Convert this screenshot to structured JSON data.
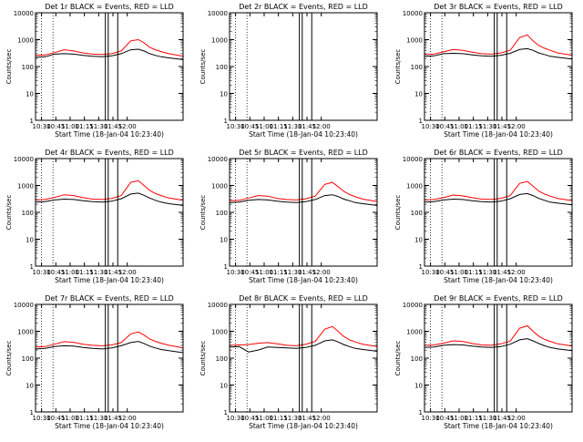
{
  "figure": {
    "start_time_label": "Start Time (18-Jan-04 10:23:40)",
    "ylabel": "Counts/sec",
    "x_ticks": [
      "10:30",
      "10:45",
      "11:00",
      "11:15",
      "11:30",
      "11:45",
      "12:00"
    ],
    "y_ticks": [
      "1",
      "10",
      "100",
      "1000",
      "10000"
    ],
    "colors": {
      "events": "#000000",
      "lld": "#ff0000",
      "axes": "#000000",
      "background": "#ffffff"
    }
  },
  "chart_data": [
    {
      "type": "line",
      "title": "Det 1r BLACK = Events, RED = LLD",
      "x_minutes_since_10_23_40": [
        0,
        10,
        20,
        30,
        40,
        50,
        60,
        70,
        80,
        90,
        100,
        108,
        114,
        120,
        126,
        132,
        140,
        150,
        155
      ],
      "x": [
        "10:23:40",
        "10:33:40",
        "10:43:40",
        "10:53:40",
        "11:03:40",
        "11:13:40",
        "11:23:40",
        "11:33:40",
        "11:43:40",
        "11:53:40",
        "12:03:40",
        "12:11:40",
        "12:17:40",
        "12:23:40",
        "12:29:40",
        "12:35:40",
        "12:43:40",
        "12:53:40",
        "12:58:40"
      ],
      "series": [
        {
          "name": "LLD",
          "color": "#ff0000",
          "values": [
            260,
            270,
            330,
            420,
            380,
            320,
            290,
            280,
            300,
            380,
            900,
            1000,
            760,
            520,
            420,
            360,
            300,
            260,
            240
          ]
        },
        {
          "name": "Events",
          "color": "#000000",
          "values": [
            220,
            230,
            290,
            300,
            290,
            260,
            240,
            230,
            250,
            300,
            420,
            440,
            380,
            300,
            260,
            230,
            210,
            190,
            180
          ]
        }
      ],
      "xlim": [
        "10:23:40",
        "12:58:40"
      ],
      "ylim": [
        1,
        10000
      ],
      "yscale": "log",
      "vlines_dotted": [
        "10:30",
        "10:42"
      ],
      "vlines_solid": [
        "11:37",
        "11:40",
        "11:50"
      ]
    },
    {
      "type": "line",
      "title": "Det 2r BLACK = Events, RED = LLD",
      "series": [],
      "xlim": [
        "10:23:40",
        "12:58:40"
      ],
      "ylim": [
        1,
        10000
      ],
      "yscale": "log",
      "vlines_dotted": [
        "10:30",
        "10:42"
      ],
      "vlines_solid": [
        "11:37",
        "11:40",
        "11:50"
      ]
    },
    {
      "type": "line",
      "title": "Det 3r BLACK = Events, RED = LLD",
      "series": [
        {
          "name": "LLD",
          "color": "#ff0000",
          "values": [
            280,
            290,
            350,
            430,
            400,
            340,
            300,
            290,
            320,
            400,
            1200,
            1500,
            900,
            600,
            480,
            400,
            320,
            280,
            260
          ]
        },
        {
          "name": "Events",
          "color": "#000000",
          "values": [
            240,
            250,
            300,
            310,
            300,
            270,
            250,
            240,
            260,
            310,
            430,
            460,
            400,
            320,
            280,
            240,
            220,
            200,
            190
          ]
        }
      ],
      "xlim": [
        "10:23:40",
        "12:58:40"
      ],
      "ylim": [
        1,
        10000
      ],
      "yscale": "log",
      "vlines_dotted": [
        "10:30",
        "10:42"
      ],
      "vlines_solid": [
        "11:37",
        "11:40",
        "11:50"
      ]
    },
    {
      "type": "line",
      "title": "Det 4r BLACK = Events, RED = LLD",
      "series": [
        {
          "name": "LLD",
          "color": "#ff0000",
          "values": [
            290,
            300,
            360,
            450,
            420,
            350,
            310,
            300,
            330,
            420,
            1300,
            1500,
            1000,
            650,
            500,
            420,
            340,
            300,
            280
          ]
        },
        {
          "name": "Events",
          "color": "#000000",
          "values": [
            240,
            250,
            290,
            310,
            300,
            270,
            250,
            240,
            260,
            320,
            480,
            520,
            430,
            340,
            280,
            240,
            210,
            190,
            180
          ]
        }
      ],
      "xlim": [
        "10:23:40",
        "12:58:40"
      ],
      "ylim": [
        1,
        10000
      ],
      "yscale": "log",
      "vlines_dotted": [
        "10:30",
        "10:42"
      ],
      "vlines_solid": [
        "11:37",
        "11:40",
        "11:50"
      ]
    },
    {
      "type": "line",
      "title": "Det 5r BLACK = Events, RED = LLD",
      "series": [
        {
          "name": "LLD",
          "color": "#ff0000",
          "values": [
            270,
            280,
            340,
            420,
            400,
            330,
            300,
            290,
            320,
            400,
            1100,
            1300,
            900,
            600,
            460,
            380,
            310,
            270,
            250
          ]
        },
        {
          "name": "Events",
          "color": "#000000",
          "values": [
            230,
            240,
            280,
            300,
            290,
            260,
            240,
            230,
            250,
            300,
            420,
            450,
            390,
            310,
            270,
            230,
            210,
            190,
            180
          ]
        }
      ],
      "xlim": [
        "10:23:40",
        "12:58:40"
      ],
      "ylim": [
        1,
        10000
      ],
      "yscale": "log",
      "vlines_dotted": [
        "10:30",
        "10:42"
      ],
      "vlines_solid": [
        "11:37",
        "11:40",
        "11:50"
      ]
    },
    {
      "type": "line",
      "title": "Det 6r BLACK = Events, RED = LLD",
      "series": [
        {
          "name": "LLD",
          "color": "#ff0000",
          "values": [
            290,
            300,
            350,
            440,
            410,
            350,
            310,
            300,
            330,
            420,
            1200,
            1400,
            950,
            620,
            480,
            400,
            330,
            290,
            270
          ]
        },
        {
          "name": "Events",
          "color": "#000000",
          "values": [
            240,
            250,
            290,
            310,
            300,
            270,
            250,
            240,
            260,
            320,
            460,
            500,
            420,
            330,
            280,
            240,
            220,
            200,
            190
          ]
        }
      ],
      "xlim": [
        "10:23:40",
        "12:58:40"
      ],
      "ylim": [
        1,
        10000
      ],
      "yscale": "log",
      "vlines_dotted": [
        "10:30",
        "10:42"
      ],
      "vlines_solid": [
        "11:37",
        "11:40",
        "11:50"
      ]
    },
    {
      "type": "line",
      "title": "Det 7r BLACK = Events, RED = LLD",
      "series": [
        {
          "name": "LLD",
          "color": "#ff0000",
          "values": [
            260,
            270,
            330,
            410,
            390,
            330,
            300,
            290,
            310,
            380,
            800,
            950,
            720,
            520,
            420,
            360,
            300,
            260,
            240
          ]
        },
        {
          "name": "Events",
          "color": "#000000",
          "values": [
            220,
            230,
            270,
            290,
            280,
            250,
            230,
            220,
            240,
            290,
            380,
            420,
            350,
            280,
            240,
            210,
            190,
            170,
            160
          ]
        }
      ],
      "xlim": [
        "10:23:40",
        "12:58:40"
      ],
      "ylim": [
        1,
        10000
      ],
      "yscale": "log",
      "vlines_dotted": [
        "10:30",
        "10:42"
      ],
      "vlines_solid": [
        "11:37",
        "11:40",
        "11:50"
      ]
    },
    {
      "type": "line",
      "title": "Det 8r BLACK = Events, RED = LLD",
      "series": [
        {
          "name": "LLD",
          "color": "#ff0000",
          "values": [
            300,
            310,
            320,
            360,
            380,
            340,
            300,
            290,
            330,
            420,
            1200,
            1500,
            1000,
            640,
            480,
            400,
            330,
            290,
            270
          ]
        },
        {
          "name": "Events",
          "color": "#000000",
          "values": [
            260,
            270,
            170,
            200,
            260,
            250,
            240,
            230,
            250,
            300,
            440,
            480,
            400,
            320,
            270,
            230,
            210,
            190,
            180
          ]
        }
      ],
      "xlim": [
        "10:23:40",
        "12:58:40"
      ],
      "ylim": [
        1,
        10000
      ],
      "yscale": "log",
      "vlines_dotted": [
        "10:30",
        "10:42"
      ],
      "vlines_solid": [
        "11:37",
        "11:40",
        "11:50"
      ]
    },
    {
      "type": "line",
      "title": "Det 9r BLACK = Events, RED = LLD",
      "series": [
        {
          "name": "LLD",
          "color": "#ff0000",
          "values": [
            300,
            310,
            360,
            440,
            420,
            350,
            310,
            300,
            340,
            430,
            1300,
            1600,
            1000,
            660,
            500,
            420,
            340,
            300,
            280
          ]
        },
        {
          "name": "Events",
          "color": "#000000",
          "values": [
            250,
            260,
            300,
            320,
            310,
            280,
            260,
            250,
            270,
            330,
            480,
            530,
            440,
            350,
            290,
            250,
            220,
            200,
            190
          ]
        }
      ],
      "xlim": [
        "10:23:40",
        "12:58:40"
      ],
      "ylim": [
        1,
        10000
      ],
      "yscale": "log",
      "vlines_dotted": [
        "10:30",
        "10:42"
      ],
      "vlines_solid": [
        "11:37",
        "11:40",
        "11:50"
      ]
    }
  ]
}
